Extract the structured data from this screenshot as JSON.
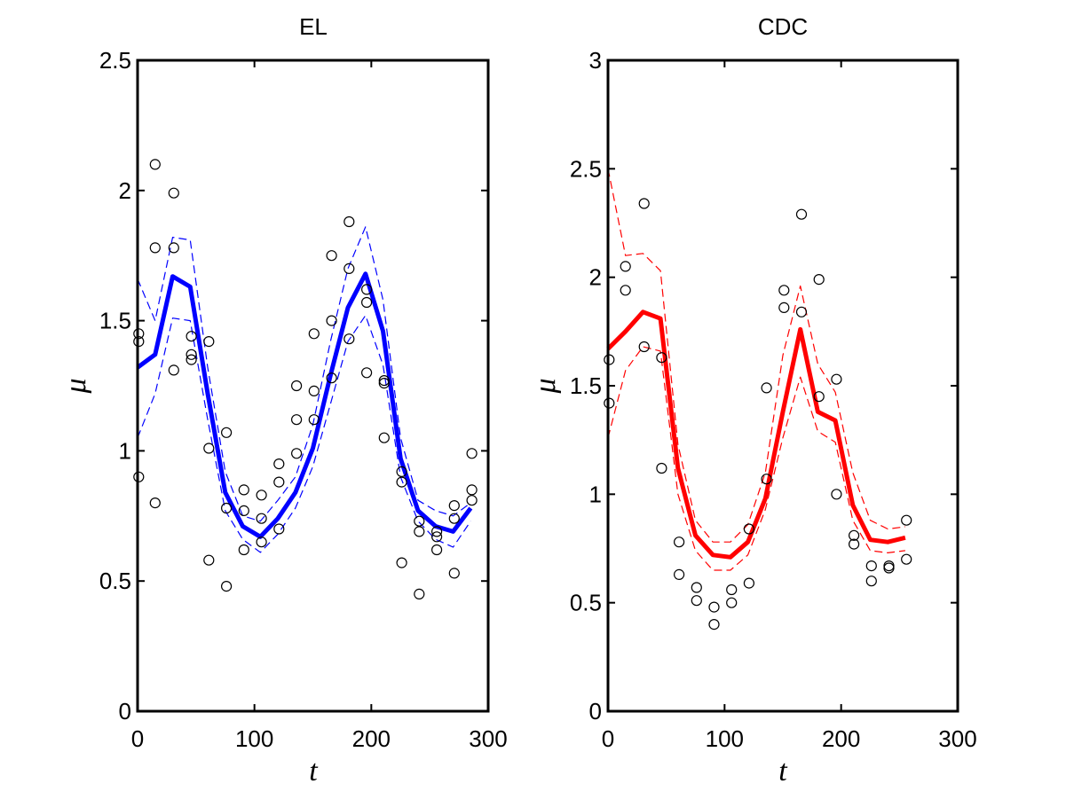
{
  "chart_data": [
    {
      "type": "line",
      "title": "EL",
      "xlabel": "t",
      "ylabel": "μ",
      "xlim": [
        0,
        300
      ],
      "ylim": [
        0,
        2.5
      ],
      "xticks": [
        "0",
        "100",
        "200",
        "300"
      ],
      "yticks": [
        "0",
        "0.5",
        "1",
        "1.5",
        "2",
        "2.5"
      ],
      "grid": false,
      "legend": "none",
      "colors": {
        "main": "#0000ff",
        "band": "#0000ff",
        "points": "#000000"
      },
      "series": [
        {
          "role": "estimate",
          "x": [
            0,
            15,
            30,
            45,
            60,
            75,
            90,
            105,
            120,
            135,
            150,
            165,
            180,
            195,
            210,
            225,
            240,
            255,
            270,
            285
          ],
          "y": [
            1.32,
            1.37,
            1.67,
            1.63,
            1.22,
            0.84,
            0.71,
            0.67,
            0.74,
            0.84,
            1.01,
            1.29,
            1.55,
            1.68,
            1.46,
            0.97,
            0.77,
            0.71,
            0.69,
            0.78
          ]
        },
        {
          "role": "upper",
          "x": [
            0,
            15,
            30,
            45,
            60,
            75,
            90,
            105,
            120,
            135,
            150,
            165,
            180,
            195,
            210,
            225,
            240,
            255,
            270,
            285
          ],
          "y": [
            1.66,
            1.5,
            1.82,
            1.81,
            1.32,
            0.92,
            0.75,
            0.73,
            0.81,
            0.9,
            1.1,
            1.42,
            1.7,
            1.86,
            1.58,
            1.05,
            0.81,
            0.77,
            0.75,
            0.8
          ]
        },
        {
          "role": "lower",
          "x": [
            0,
            15,
            30,
            45,
            60,
            75,
            90,
            105,
            120,
            135,
            150,
            165,
            180,
            195,
            210,
            225,
            240,
            255,
            270,
            285
          ],
          "y": [
            1.05,
            1.22,
            1.51,
            1.5,
            1.12,
            0.77,
            0.66,
            0.61,
            0.68,
            0.78,
            0.94,
            1.18,
            1.42,
            1.52,
            1.33,
            0.9,
            0.73,
            0.66,
            0.63,
            0.73
          ]
        }
      ],
      "points": [
        {
          "x": 1,
          "y": 1.45
        },
        {
          "x": 1,
          "y": 1.42
        },
        {
          "x": 1,
          "y": 0.9
        },
        {
          "x": 15,
          "y": 2.1
        },
        {
          "x": 15,
          "y": 1.78
        },
        {
          "x": 15,
          "y": 0.8
        },
        {
          "x": 31,
          "y": 1.99
        },
        {
          "x": 31,
          "y": 1.78
        },
        {
          "x": 31,
          "y": 1.31
        },
        {
          "x": 46,
          "y": 1.44
        },
        {
          "x": 46,
          "y": 1.37
        },
        {
          "x": 46,
          "y": 1.35
        },
        {
          "x": 61,
          "y": 1.42
        },
        {
          "x": 61,
          "y": 1.01
        },
        {
          "x": 61,
          "y": 0.58
        },
        {
          "x": 76,
          "y": 1.07
        },
        {
          "x": 76,
          "y": 0.78
        },
        {
          "x": 76,
          "y": 0.48
        },
        {
          "x": 91,
          "y": 0.85
        },
        {
          "x": 91,
          "y": 0.77
        },
        {
          "x": 91,
          "y": 0.62
        },
        {
          "x": 106,
          "y": 0.83
        },
        {
          "x": 106,
          "y": 0.74
        },
        {
          "x": 106,
          "y": 0.65
        },
        {
          "x": 121,
          "y": 0.95
        },
        {
          "x": 121,
          "y": 0.88
        },
        {
          "x": 121,
          "y": 0.7
        },
        {
          "x": 136,
          "y": 1.25
        },
        {
          "x": 136,
          "y": 1.12
        },
        {
          "x": 136,
          "y": 0.99
        },
        {
          "x": 151,
          "y": 1.45
        },
        {
          "x": 151,
          "y": 1.23
        },
        {
          "x": 151,
          "y": 1.12
        },
        {
          "x": 166,
          "y": 1.75
        },
        {
          "x": 166,
          "y": 1.5
        },
        {
          "x": 166,
          "y": 1.28
        },
        {
          "x": 181,
          "y": 1.88
        },
        {
          "x": 181,
          "y": 1.7
        },
        {
          "x": 181,
          "y": 1.43
        },
        {
          "x": 196,
          "y": 1.62
        },
        {
          "x": 196,
          "y": 1.57
        },
        {
          "x": 196,
          "y": 1.3
        },
        {
          "x": 211,
          "y": 1.27
        },
        {
          "x": 211,
          "y": 1.26
        },
        {
          "x": 211,
          "y": 1.05
        },
        {
          "x": 226,
          "y": 0.92
        },
        {
          "x": 226,
          "y": 0.88
        },
        {
          "x": 226,
          "y": 0.57
        },
        {
          "x": 241,
          "y": 0.73
        },
        {
          "x": 241,
          "y": 0.69
        },
        {
          "x": 241,
          "y": 0.45
        },
        {
          "x": 256,
          "y": 0.69
        },
        {
          "x": 256,
          "y": 0.67
        },
        {
          "x": 256,
          "y": 0.62
        },
        {
          "x": 271,
          "y": 0.79
        },
        {
          "x": 271,
          "y": 0.74
        },
        {
          "x": 271,
          "y": 0.53
        },
        {
          "x": 286,
          "y": 0.99
        },
        {
          "x": 286,
          "y": 0.85
        },
        {
          "x": 286,
          "y": 0.81
        }
      ]
    },
    {
      "type": "line",
      "title": "CDC",
      "xlabel": "t",
      "ylabel": "μ",
      "xlim": [
        0,
        300
      ],
      "ylim": [
        0,
        3
      ],
      "xticks": [
        "0",
        "100",
        "200",
        "300"
      ],
      "yticks": [
        "0",
        "0.5",
        "1",
        "1.5",
        "2",
        "2.5",
        "3"
      ],
      "grid": false,
      "legend": "none",
      "colors": {
        "main": "#ff0000",
        "band": "#ff0000",
        "points": "#000000"
      },
      "series": [
        {
          "role": "estimate",
          "x": [
            0,
            15,
            30,
            45,
            60,
            75,
            90,
            105,
            120,
            135,
            150,
            165,
            180,
            195,
            210,
            225,
            240,
            255
          ],
          "y": [
            1.67,
            1.75,
            1.84,
            1.81,
            1.12,
            0.81,
            0.72,
            0.71,
            0.78,
            0.98,
            1.38,
            1.76,
            1.38,
            1.34,
            0.95,
            0.79,
            0.78,
            0.8
          ]
        },
        {
          "role": "upper",
          "x": [
            0,
            15,
            30,
            45,
            60,
            75,
            90,
            105,
            120,
            135,
            150,
            165,
            180,
            195,
            210,
            225,
            240,
            255
          ],
          "y": [
            2.5,
            2.1,
            2.11,
            2.03,
            1.23,
            0.88,
            0.78,
            0.78,
            0.86,
            1.1,
            1.64,
            1.96,
            1.6,
            1.47,
            1.1,
            0.88,
            0.84,
            0.85
          ]
        },
        {
          "role": "lower",
          "x": [
            0,
            15,
            30,
            45,
            60,
            75,
            90,
            105,
            120,
            135,
            150,
            165,
            180,
            195,
            210,
            225,
            240,
            255
          ],
          "y": [
            1.26,
            1.57,
            1.68,
            1.66,
            1.0,
            0.74,
            0.65,
            0.65,
            0.72,
            0.93,
            1.26,
            1.54,
            1.29,
            1.24,
            0.88,
            0.74,
            0.73,
            0.74
          ]
        }
      ],
      "points": [
        {
          "x": 1,
          "y": 1.62
        },
        {
          "x": 1,
          "y": 1.42
        },
        {
          "x": 15,
          "y": 2.05
        },
        {
          "x": 15,
          "y": 1.94
        },
        {
          "x": 31,
          "y": 2.34
        },
        {
          "x": 31,
          "y": 1.68
        },
        {
          "x": 46,
          "y": 1.63
        },
        {
          "x": 46,
          "y": 1.12
        },
        {
          "x": 61,
          "y": 0.78
        },
        {
          "x": 61,
          "y": 0.63
        },
        {
          "x": 76,
          "y": 0.57
        },
        {
          "x": 76,
          "y": 0.51
        },
        {
          "x": 91,
          "y": 0.48
        },
        {
          "x": 91,
          "y": 0.4
        },
        {
          "x": 106,
          "y": 0.56
        },
        {
          "x": 106,
          "y": 0.5
        },
        {
          "x": 121,
          "y": 0.84
        },
        {
          "x": 121,
          "y": 0.59
        },
        {
          "x": 136,
          "y": 1.49
        },
        {
          "x": 136,
          "y": 1.07
        },
        {
          "x": 151,
          "y": 1.94
        },
        {
          "x": 151,
          "y": 1.86
        },
        {
          "x": 166,
          "y": 2.29
        },
        {
          "x": 166,
          "y": 1.84
        },
        {
          "x": 181,
          "y": 1.99
        },
        {
          "x": 181,
          "y": 1.45
        },
        {
          "x": 196,
          "y": 1.53
        },
        {
          "x": 196,
          "y": 1.0
        },
        {
          "x": 211,
          "y": 0.81
        },
        {
          "x": 211,
          "y": 0.77
        },
        {
          "x": 226,
          "y": 0.67
        },
        {
          "x": 226,
          "y": 0.6
        },
        {
          "x": 241,
          "y": 0.67
        },
        {
          "x": 241,
          "y": 0.66
        },
        {
          "x": 256,
          "y": 0.88
        },
        {
          "x": 256,
          "y": 0.7
        }
      ]
    }
  ]
}
